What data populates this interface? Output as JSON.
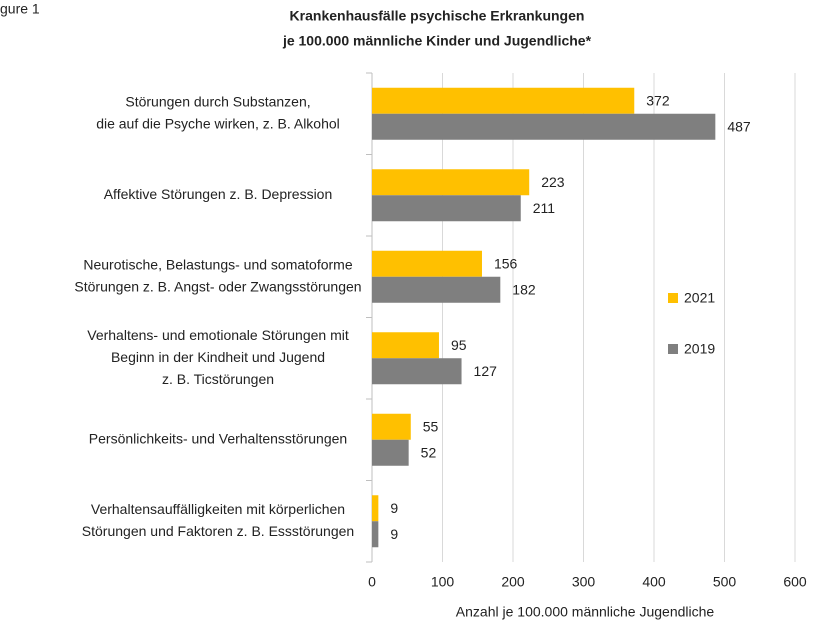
{
  "chart_data": {
    "type": "bar",
    "orientation": "horizontal",
    "corner_text": "gure 1",
    "title": [
      "Krankenhausfälle psychische Erkrankungen",
      "je 100.000 männliche Kinder und Jugendliche*"
    ],
    "xlabel": "Anzahl je 100.000 männliche Jugendliche",
    "categories": [
      [
        "Störungen durch Substanzen,",
        "die auf die Psyche wirken, z. B. Alkohol"
      ],
      [
        "Affektive Störungen z. B. Depression"
      ],
      [
        "Neurotische, Belastungs- und somatoforme",
        "Störungen z. B. Angst- oder Zwangsstörungen"
      ],
      [
        "Verhaltens- und emotionale Störungen mit",
        "Beginn in der Kindheit und Jugend",
        "z. B. Ticstörungen"
      ],
      [
        "Persönlichkeits- und Verhaltensstörungen"
      ],
      [
        "Verhaltensauffälligkeiten mit körperlichen",
        "Störungen und Faktoren z. B. Essstörungen"
      ]
    ],
    "series": [
      {
        "name": "2021",
        "color": "#ffc000",
        "values": [
          372,
          223,
          156,
          95,
          55,
          9
        ]
      },
      {
        "name": "2019",
        "color": "#7f7f7f",
        "values": [
          487,
          211,
          182,
          127,
          52,
          9
        ]
      }
    ],
    "xlim": [
      0,
      600
    ],
    "xticks": [
      0,
      100,
      200,
      300,
      400,
      500,
      600
    ],
    "grid": true,
    "legend": "right"
  }
}
